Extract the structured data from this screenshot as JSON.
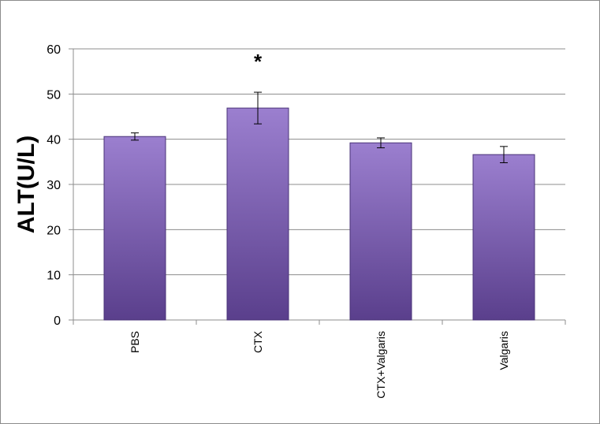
{
  "chart_data": {
    "type": "bar",
    "title": "",
    "xlabel": "",
    "ylabel": "ALT(U/L)",
    "ylim": [
      0,
      60
    ],
    "yticks": [
      "0",
      "10",
      "20",
      "30",
      "40",
      "50",
      "60"
    ],
    "grid": true,
    "legend": "none",
    "categories": [
      "PBS",
      "CTX",
      "CTX+Valgaris",
      "Valgaris"
    ],
    "values": [
      40.6,
      46.9,
      39.2,
      36.6
    ],
    "error": [
      0.8,
      3.5,
      1.1,
      1.8
    ],
    "annotations": [
      {
        "category": "CTX",
        "text": "*"
      }
    ],
    "colors": {
      "bar_top": "#9b7fcf",
      "bar_bottom": "#5a3f8c",
      "bar_edge": "#4a3378",
      "grid": "#8c8c8c",
      "axis": "#8c8c8c"
    }
  }
}
